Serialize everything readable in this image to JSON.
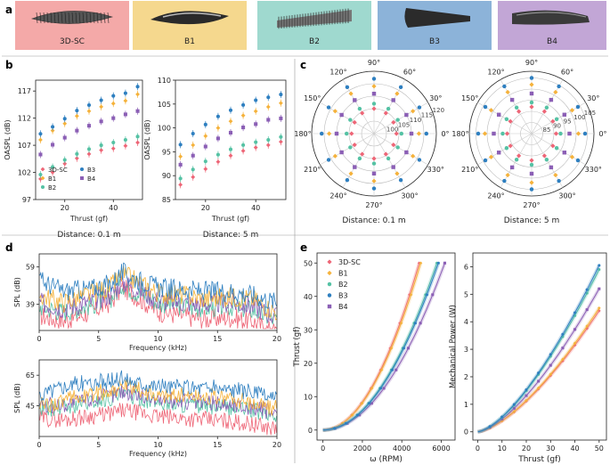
{
  "panel_labels": {
    "a": "a",
    "b": "b",
    "c": "c",
    "d": "d",
    "e": "e"
  },
  "colors": {
    "3D-SC": "#ee6677",
    "B1": "#f5b23b",
    "B2": "#55c2a4",
    "B3": "#2e7fc0",
    "B4": "#8b5fb5",
    "panel_bg": [
      "#f4a9a8",
      "#f5d88e",
      "#9fd9cf",
      "#8cb3d9",
      "#c2a6d6"
    ]
  },
  "panel_a": {
    "blades": [
      {
        "label": "3D-SC",
        "icon": "serrated-blade-icon"
      },
      {
        "label": "B1",
        "icon": "smooth-blade-icon"
      },
      {
        "label": "B2",
        "icon": "serrated-blade-icon"
      },
      {
        "label": "B3",
        "icon": "tapered-blade-icon"
      },
      {
        "label": "B4",
        "icon": "tapered-blade-icon"
      }
    ]
  },
  "chart_data": [
    {
      "id": "b-left",
      "type": "scatter",
      "title": "Distance: 0.1 m",
      "xlabel": "Thrust (gf)",
      "ylabel": "OASPL (dB)",
      "xlim": [
        8,
        52
      ],
      "ylim": [
        97,
        119
      ],
      "xticks": [
        20,
        40
      ],
      "yticks": [
        97,
        102,
        107,
        112,
        117
      ],
      "legend": {
        "placement": "lower-left",
        "entries": [
          "3D-SC",
          "B1",
          "B2",
          "B3",
          "B4"
        ]
      },
      "x": [
        10,
        15,
        20,
        25,
        30,
        35,
        40,
        45,
        50
      ],
      "series": [
        {
          "name": "3D-SC",
          "marker": "diamond",
          "values": [
            100.8,
            102.0,
            103.6,
            104.6,
            105.4,
            106.1,
            106.4,
            106.9,
            107.5
          ]
        },
        {
          "name": "B1",
          "marker": "diamond",
          "values": [
            108.0,
            109.7,
            111.0,
            112.4,
            113.3,
            114.1,
            114.7,
            115.2,
            116.4
          ]
        },
        {
          "name": "B2",
          "marker": "circle",
          "values": [
            101.6,
            103.0,
            104.3,
            105.4,
            106.3,
            107.0,
            107.5,
            108.0,
            108.6
          ]
        },
        {
          "name": "B3",
          "marker": "circle",
          "values": [
            109.1,
            110.4,
            111.9,
            113.4,
            114.4,
            115.3,
            116.1,
            116.6,
            117.8
          ]
        },
        {
          "name": "B4",
          "marker": "square",
          "values": [
            105.3,
            107.1,
            108.4,
            109.7,
            110.6,
            111.4,
            112.0,
            112.7,
            113.3
          ]
        }
      ]
    },
    {
      "id": "b-right",
      "type": "scatter",
      "title": "Distance: 5 m",
      "xlabel": "Thrust (gf)",
      "ylabel": "OASPL (dB)",
      "xlim": [
        8,
        52
      ],
      "ylim": [
        85,
        110
      ],
      "xticks": [
        20,
        40
      ],
      "yticks": [
        85,
        90,
        95,
        100,
        105,
        110
      ],
      "x": [
        10,
        15,
        20,
        25,
        30,
        35,
        40,
        45,
        50
      ],
      "series": [
        {
          "name": "3D-SC",
          "marker": "diamond",
          "values": [
            88.1,
            89.7,
            91.4,
            92.9,
            94.2,
            95.2,
            95.9,
            96.4,
            97.1
          ]
        },
        {
          "name": "B1",
          "marker": "diamond",
          "values": [
            94.0,
            96.4,
            98.3,
            100.0,
            101.4,
            102.6,
            103.5,
            104.4,
            105.2
          ]
        },
        {
          "name": "B2",
          "marker": "circle",
          "values": [
            89.4,
            91.3,
            93.0,
            94.4,
            95.5,
            96.4,
            97.0,
            97.5,
            98.1
          ]
        },
        {
          "name": "B3",
          "marker": "circle",
          "values": [
            96.5,
            98.8,
            100.7,
            102.4,
            103.7,
            104.8,
            105.8,
            106.4,
            107.0
          ]
        },
        {
          "name": "B4",
          "marker": "square",
          "values": [
            92.3,
            94.2,
            96.1,
            97.8,
            99.0,
            100.1,
            100.8,
            101.7,
            102.0
          ]
        }
      ]
    },
    {
      "id": "c-left",
      "type": "polar-scatter",
      "title": "Distance: 0.1 m",
      "angle_labels": [
        "0°",
        "30°",
        "60°",
        "90°",
        "120°",
        "150°",
        "180°",
        "210°",
        "240°",
        "270°",
        "300°",
        "330°"
      ],
      "radial_ticks": [
        100,
        105,
        110,
        115,
        120
      ],
      "rlim": [
        95,
        120
      ],
      "angles_deg": [
        0,
        30,
        60,
        90,
        120,
        150,
        180,
        210,
        240,
        270,
        300,
        330
      ],
      "series": [
        {
          "name": "3D-SC",
          "marker": "diamond",
          "values": [
            104,
            104,
            104.5,
            105,
            104.5,
            104,
            104,
            104,
            104.5,
            105,
            104.5,
            104
          ]
        },
        {
          "name": "B1",
          "marker": "diamond",
          "values": [
            113,
            113,
            113.5,
            114,
            113.5,
            113,
            113,
            113,
            113.5,
            114,
            113.5,
            113
          ]
        },
        {
          "name": "B2",
          "marker": "circle",
          "values": [
            106,
            106,
            106.5,
            107,
            106.5,
            106,
            106,
            106,
            106.5,
            107,
            106.5,
            106
          ]
        },
        {
          "name": "B3",
          "marker": "circle",
          "values": [
            116,
            116,
            116.5,
            117,
            116.5,
            116,
            116,
            116,
            116.5,
            117,
            116.5,
            116
          ]
        },
        {
          "name": "B4",
          "marker": "square",
          "values": [
            110,
            110,
            110.5,
            111,
            110.5,
            110,
            110,
            110,
            110.5,
            111,
            110.5,
            110
          ]
        }
      ]
    },
    {
      "id": "c-right",
      "type": "polar-scatter",
      "title": "Distance: 5 m",
      "angle_labels": [
        "0°",
        "30°",
        "60°",
        "90°",
        "120°",
        "150°",
        "180°",
        "210°",
        "240°",
        "270°",
        "300°",
        "330°"
      ],
      "radial_ticks": [
        85,
        90,
        95,
        100,
        105
      ],
      "rlim": [
        80,
        108
      ],
      "angles_deg": [
        0,
        30,
        60,
        90,
        120,
        150,
        180,
        210,
        240,
        270,
        300,
        330
      ],
      "series": [
        {
          "name": "3D-SC",
          "marker": "diamond",
          "values": [
            91,
            91,
            91.5,
            92,
            91.5,
            91,
            91,
            91,
            91.5,
            92,
            91.5,
            91
          ]
        },
        {
          "name": "B1",
          "marker": "diamond",
          "values": [
            101,
            101,
            101.5,
            102,
            101.5,
            101,
            101,
            101,
            101.5,
            102,
            101.5,
            101
          ]
        },
        {
          "name": "B2",
          "marker": "circle",
          "values": [
            93,
            93,
            93.5,
            94,
            93.5,
            93,
            93,
            93,
            93.5,
            94,
            93.5,
            93
          ]
        },
        {
          "name": "B3",
          "marker": "circle",
          "values": [
            104,
            104,
            104.5,
            105,
            104.5,
            104,
            104,
            104,
            104.5,
            105,
            104.5,
            104
          ]
        },
        {
          "name": "B4",
          "marker": "square",
          "values": [
            97,
            97,
            97.5,
            98,
            97.5,
            97,
            97,
            97,
            97.5,
            98,
            97.5,
            97
          ]
        }
      ]
    },
    {
      "id": "d-top",
      "type": "line",
      "xlabel": "Frequency (kHz)",
      "ylabel": "SPL (dB)",
      "xlim": [
        0,
        20
      ],
      "ylim": [
        25,
        66
      ],
      "xticks": [
        0,
        5,
        10,
        15,
        20
      ],
      "yticks": [
        39,
        59
      ],
      "profile": {
        "freq_khz": [
          0,
          2,
          4,
          6,
          7,
          8,
          10,
          12,
          14,
          16,
          18,
          19,
          20
        ],
        "series": [
          {
            "name": "3D-SC",
            "values": [
              33,
              30,
              34,
              40,
              48,
              44,
              35,
              33,
              31,
              32,
              30,
              26,
              24
            ]
          },
          {
            "name": "B1",
            "values": [
              44,
              40,
              44,
              48,
              55,
              52,
              45,
              44,
              42,
              43,
              42,
              38,
              35
            ]
          },
          {
            "name": "B2",
            "values": [
              38,
              35,
              38,
              42,
              50,
              46,
              40,
              38,
              37,
              38,
              36,
              33,
              30
            ]
          },
          {
            "name": "B3",
            "values": [
              52,
              46,
              47,
              50,
              56,
              53,
              48,
              47,
              46,
              46,
              44,
              42,
              40
            ]
          },
          {
            "name": "B4",
            "values": [
              40,
              37,
              40,
              44,
              51,
              48,
              41,
              40,
              39,
              40,
              38,
              35,
              32
            ]
          }
        ]
      }
    },
    {
      "id": "d-bottom",
      "type": "line",
      "xlabel": "Frequency (kHz)",
      "ylabel": "SPL (dB)",
      "xlim": [
        0,
        20
      ],
      "ylim": [
        25,
        75
      ],
      "xticks": [
        0,
        5,
        10,
        15,
        20
      ],
      "yticks": [
        45,
        65
      ],
      "profile": {
        "freq_khz": [
          0,
          2,
          4,
          6,
          7,
          8,
          10,
          12,
          14,
          16,
          18,
          19,
          20
        ],
        "series": [
          {
            "name": "3D-SC",
            "values": [
              37,
              36,
              38,
              40,
              42,
              41,
              38,
              37,
              36,
              35,
              33,
              31,
              30
            ]
          },
          {
            "name": "B1",
            "values": [
              45,
              48,
              52,
              55,
              58,
              56,
              52,
              52,
              51,
              50,
              47,
              45,
              43
            ]
          },
          {
            "name": "B2",
            "values": [
              43,
              44,
              47,
              50,
              52,
              51,
              47,
              46,
              45,
              44,
              42,
              40,
              38
            ]
          },
          {
            "name": "B3",
            "values": [
              52,
              58,
              60,
              61,
              63,
              61,
              58,
              57,
              57,
              56,
              54,
              51,
              49
            ]
          },
          {
            "name": "B4",
            "values": [
              45,
              46,
              49,
              52,
              55,
              53,
              49,
              48,
              47,
              46,
              44,
              42,
              40
            ]
          }
        ]
      }
    },
    {
      "id": "e-left",
      "type": "scatter-with-fit",
      "xlabel": "ω (RPM)",
      "ylabel": "Thrust (gf)",
      "xlim": [
        -300,
        6700
      ],
      "ylim": [
        -3,
        53
      ],
      "xticks": [
        0,
        2000,
        4000,
        6000
      ],
      "yticks": [
        0,
        10,
        20,
        30,
        40,
        50
      ],
      "legend": {
        "placement": "top-left",
        "entries": [
          "3D-SC",
          "B1",
          "B2",
          "B3",
          "B4"
        ]
      },
      "model": "thrust = (omega / omega_at_50gf)^2 * 50",
      "series": [
        {
          "name": "3D-SC",
          "omega_at_50gf": 4880
        },
        {
          "name": "B1",
          "omega_at_50gf": 4960
        },
        {
          "name": "B2",
          "omega_at_50gf": 5780
        },
        {
          "name": "B3",
          "omega_at_50gf": 5860
        },
        {
          "name": "B4",
          "omega_at_50gf": 6180
        }
      ]
    },
    {
      "id": "e-right",
      "type": "scatter-with-fit",
      "xlabel": "Thrust (gf)",
      "ylabel": "Mechanical Power (W)",
      "xlim": [
        -2,
        53
      ],
      "ylim": [
        -0.3,
        6.5
      ],
      "xticks": [
        0,
        10,
        20,
        30,
        40,
        50
      ],
      "yticks": [
        0,
        1,
        2,
        3,
        4,
        5,
        6
      ],
      "model": "power = p50 * (thrust / 50)^1.5",
      "series": [
        {
          "name": "3D-SC",
          "p50": 4.4
        },
        {
          "name": "B1",
          "p50": 4.5
        },
        {
          "name": "B2",
          "p50": 5.9
        },
        {
          "name": "B3",
          "p50": 6.05
        },
        {
          "name": "B4",
          "p50": 5.2
        }
      ]
    }
  ]
}
